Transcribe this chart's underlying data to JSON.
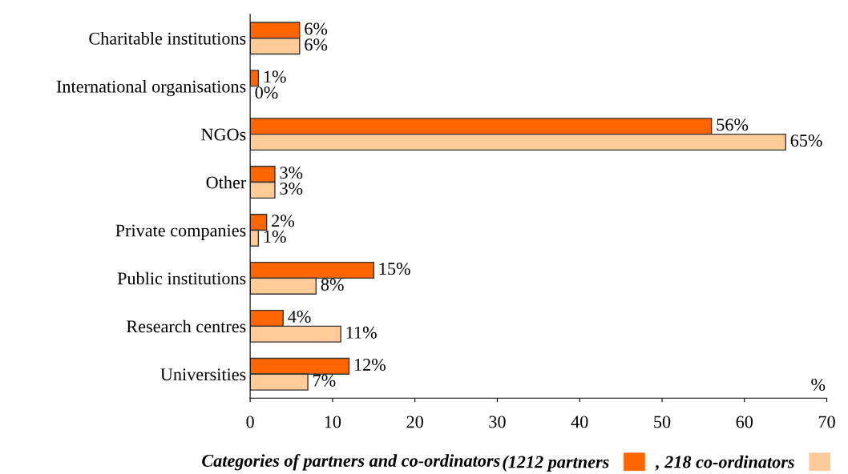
{
  "chart_data": {
    "type": "bar",
    "orientation": "horizontal",
    "xlabel": "Categories of partners and co-ordinators",
    "categories": [
      "Charitable institutions",
      "International organisations",
      "NGOs",
      "Other",
      "Private companies",
      "Public institutions",
      "Research centres",
      "Universities"
    ],
    "series": [
      {
        "name": "(1212 partners",
        "color": "#ff6600",
        "values": [
          6,
          1,
          56,
          3,
          2,
          15,
          4,
          12
        ],
        "value_labels": [
          "6%",
          "1%",
          "56%",
          "3%",
          "2%",
          "15%",
          "4%",
          "12%"
        ]
      },
      {
        "name": ", 218 co-ordinators",
        "color": "#ffcc99",
        "values": [
          6,
          0,
          65,
          3,
          1,
          8,
          11,
          7
        ],
        "value_labels": [
          "6%",
          "0%",
          "65%",
          "3%",
          "1%",
          "8%",
          "11%",
          "7%"
        ]
      }
    ],
    "xlim": [
      0,
      70
    ],
    "xticks": [
      0,
      10,
      20,
      30,
      40,
      50,
      60,
      70
    ],
    "grid": false,
    "legend": "bottom",
    "annotations": [
      "%"
    ]
  }
}
